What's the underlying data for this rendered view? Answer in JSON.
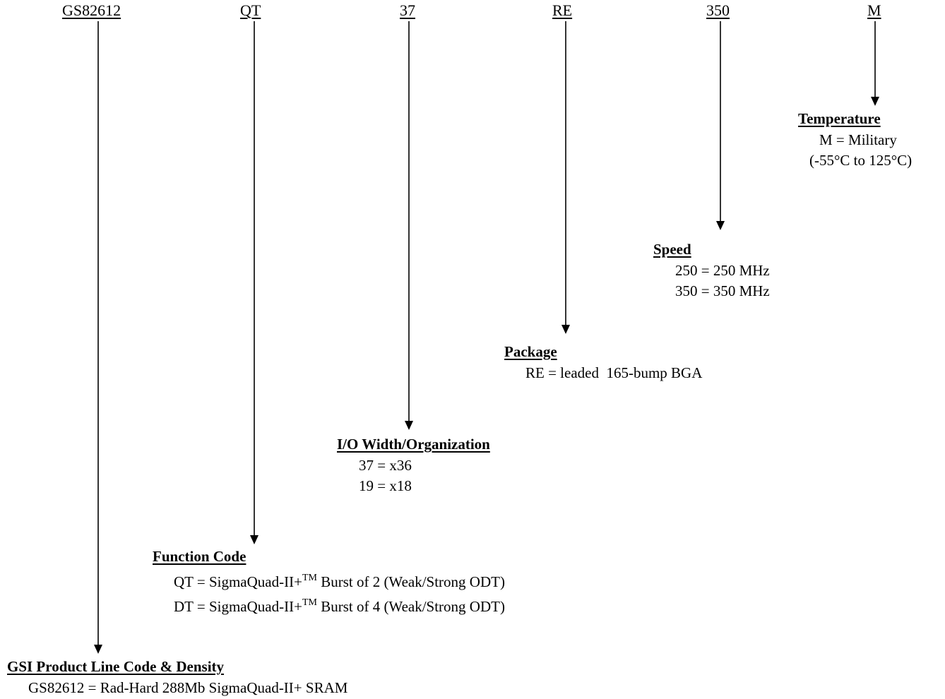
{
  "codes": {
    "product": "GS82612",
    "function": "QT",
    "width": "37",
    "package": "RE",
    "speed": "350",
    "temperature": "M"
  },
  "temperature": {
    "title": "Temperature",
    "lines": [
      "M = Military",
      "(-55°C to 125°C)"
    ]
  },
  "speed": {
    "title": "Speed",
    "lines": [
      "250 = 250 MHz",
      "350 = 350 MHz"
    ]
  },
  "package": {
    "title": "Package",
    "lines": [
      "RE = leaded  165-bump BGA"
    ]
  },
  "io_width": {
    "title": "I/O Width/Organization",
    "lines": [
      "37 = x36",
      "19 = x18"
    ]
  },
  "function_code": {
    "title": "Function Code",
    "lines": [
      {
        "pre": "QT = SigmaQuad-II+",
        "sup": "TM",
        "post": " Burst of 2 (Weak/Strong ODT)"
      },
      {
        "pre": "DT = SigmaQuad-II+",
        "sup": "TM",
        "post": " Burst of 4 (Weak/Strong ODT)"
      }
    ]
  },
  "product_line": {
    "title": "GSI Product Line Code & Density",
    "lines": [
      "GS82612 = Rad-Hard 288Mb SigmaQuad-II+ SRAM"
    ]
  }
}
